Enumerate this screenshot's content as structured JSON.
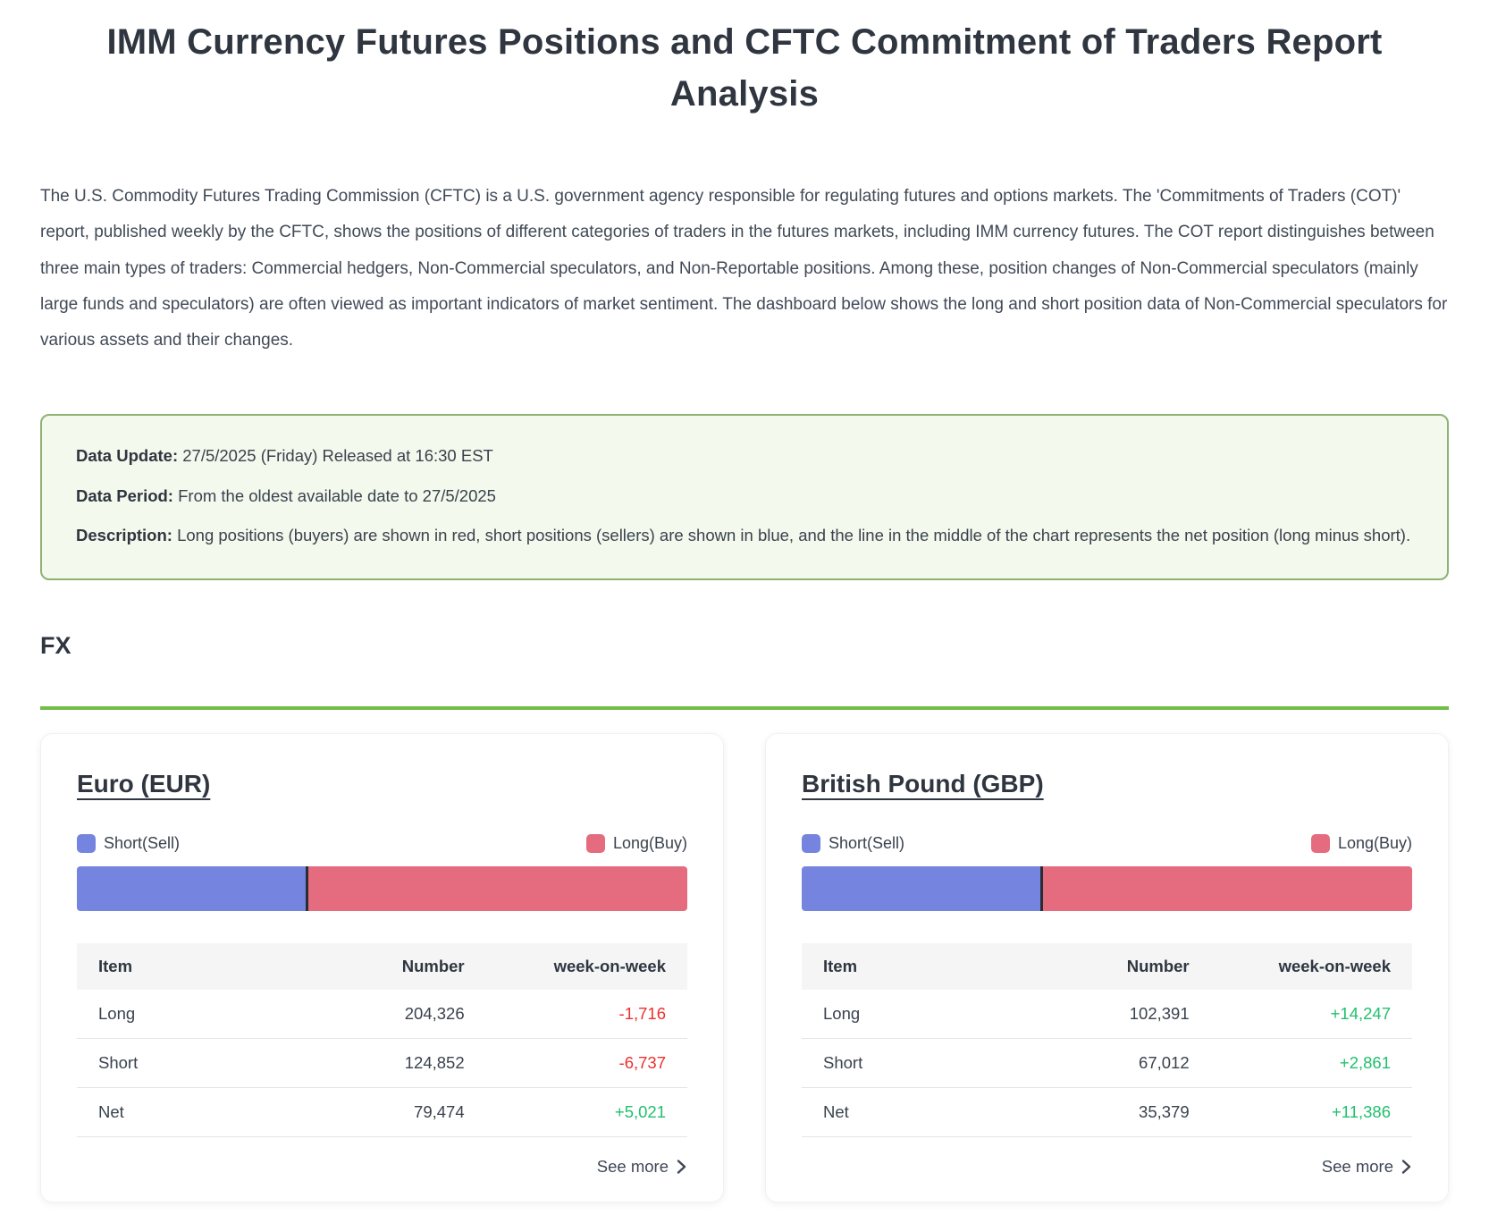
{
  "page": {
    "title": "IMM Currency Futures Positions and CFTC Commitment of Traders Report Analysis",
    "intro": "The U.S. Commodity Futures Trading Commission (CFTC) is a U.S. government agency responsible for regulating futures and options markets. The 'Commitments of Traders (COT)' report, published weekly by the CFTC, shows the positions of different categories of traders in the futures markets, including IMM currency futures. The COT report distinguishes between three main types of traders: Commercial hedgers, Non-Commercial speculators, and Non-Reportable positions. Among these, position changes of Non-Commercial speculators (mainly large funds and speculators) are often viewed as important indicators of market sentiment. The dashboard below shows the long and short position data of Non-Commercial speculators for various assets and their changes."
  },
  "info_box": {
    "update_label": "Data Update:",
    "update_value": "27/5/2025 (Friday) Released at 16:30 EST",
    "period_label": "Data Period:",
    "period_value": "From the oldest available date to 27/5/2025",
    "description_label": "Description:",
    "description_value": "Long positions (buyers) are shown in red, short positions (sellers) are shown in blue, and the line in the middle of the chart represents the net position (long minus short)."
  },
  "section_title": "FX",
  "legend": {
    "short_label": "Short(Sell)",
    "long_label": "Long(Buy)"
  },
  "table_headers": {
    "item": "Item",
    "number": "Number",
    "week_on_week": "week-on-week"
  },
  "see_more_label": "See more",
  "colors": {
    "short_blue": "#7585DF",
    "long_red": "#E56B7E",
    "positive_green": "#22C06E",
    "negative_red": "#EE2F2F",
    "section_green": "#72BD45",
    "infobox_bg": "#F3F9EC",
    "infobox_border": "#8FB273"
  },
  "cards": [
    {
      "title": "Euro (EUR)",
      "chart_data": {
        "type": "bar",
        "orientation": "horizontal-stacked",
        "series": [
          {
            "name": "Short(Sell)",
            "value": 124852,
            "color": "#7585DF"
          },
          {
            "name": "Long(Buy)",
            "value": 204326,
            "color": "#E56B7E"
          }
        ]
      },
      "rows": [
        {
          "item": "Long",
          "number": "204,326",
          "week_on_week": "-1,716"
        },
        {
          "item": "Short",
          "number": "124,852",
          "week_on_week": "-6,737"
        },
        {
          "item": "Net",
          "number": "79,474",
          "week_on_week": "+5,021"
        }
      ]
    },
    {
      "title": "British Pound (GBP)",
      "chart_data": {
        "type": "bar",
        "orientation": "horizontal-stacked",
        "series": [
          {
            "name": "Short(Sell)",
            "value": 67012,
            "color": "#7585DF"
          },
          {
            "name": "Long(Buy)",
            "value": 102391,
            "color": "#E56B7E"
          }
        ]
      },
      "rows": [
        {
          "item": "Long",
          "number": "102,391",
          "week_on_week": "+14,247"
        },
        {
          "item": "Short",
          "number": "67,012",
          "week_on_week": "+2,861"
        },
        {
          "item": "Net",
          "number": "35,379",
          "week_on_week": "+11,386"
        }
      ]
    }
  ]
}
